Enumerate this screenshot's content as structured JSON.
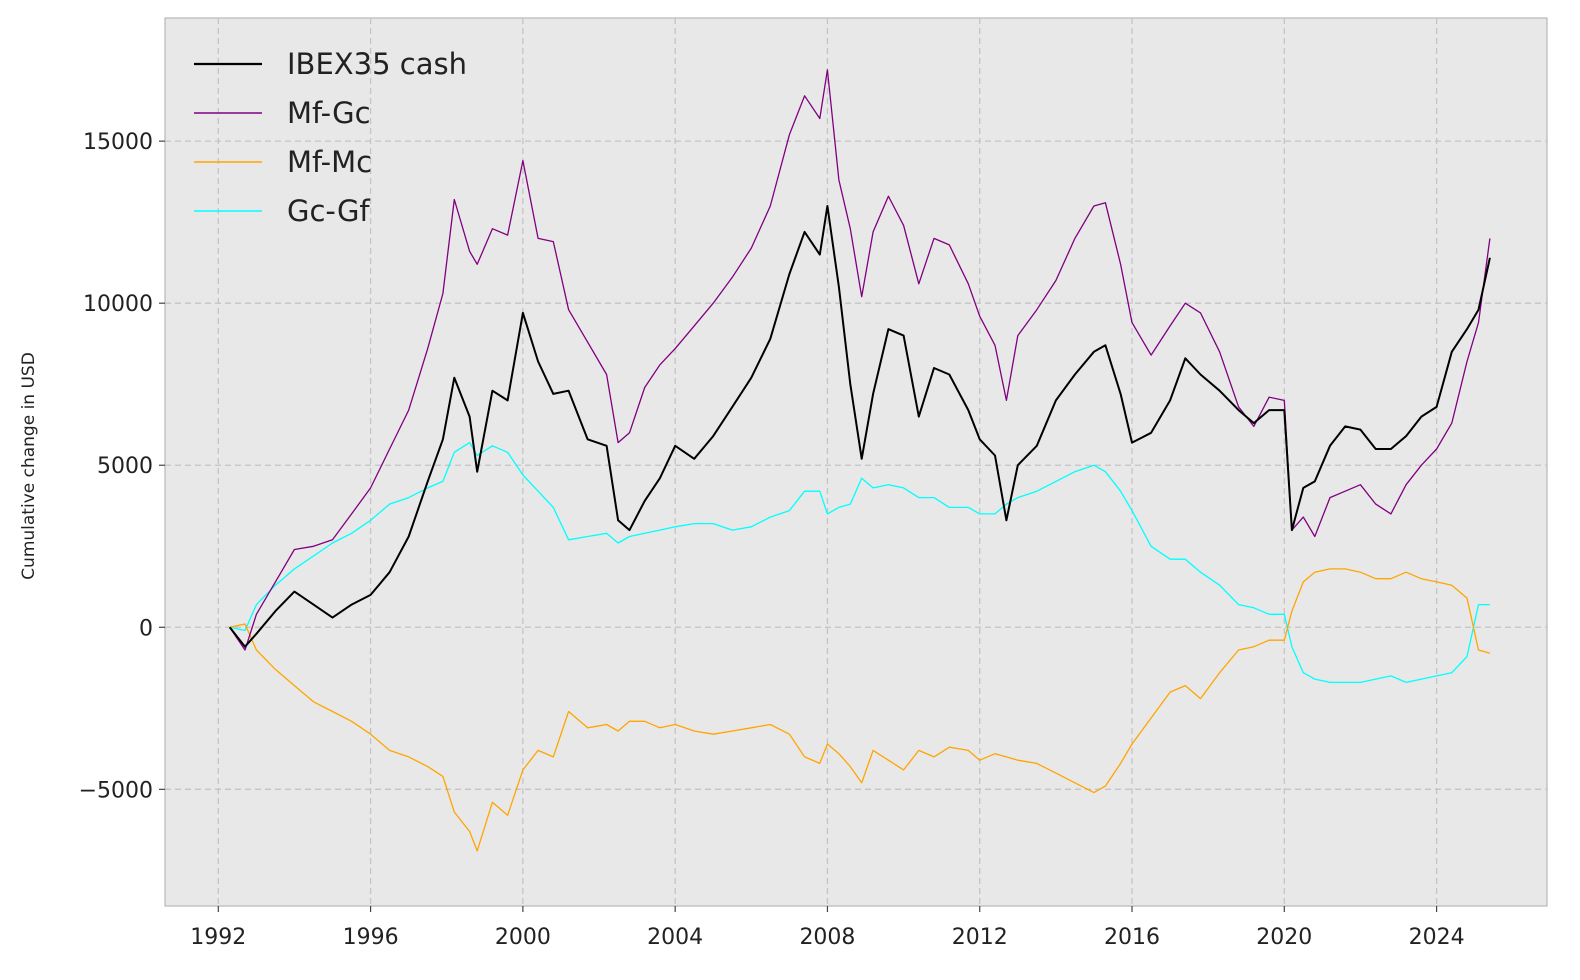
{
  "chart_data": {
    "type": "line",
    "title": "",
    "xlabel": "",
    "ylabel": "Cumulative change in USD",
    "xlim": [
      1990.6,
      2026.9
    ],
    "ylim": [
      -8600,
      18800
    ],
    "grid": true,
    "legend_position": "top-left",
    "x_ticks": [
      1992,
      1996,
      2000,
      2004,
      2008,
      2012,
      2016,
      2020,
      2024
    ],
    "x_tick_labels": [
      "1992",
      "1996",
      "2000",
      "2004",
      "2008",
      "2012",
      "2016",
      "2020",
      "2024"
    ],
    "y_ticks": [
      -5000,
      0,
      5000,
      10000,
      15000
    ],
    "y_tick_labels": [
      "−5000",
      "0",
      "5000",
      "10000",
      "15000"
    ],
    "series": [
      {
        "name": "IBEX35 cash",
        "color": "#000000",
        "x": [
          1992.3,
          1992.7,
          1993.0,
          1993.5,
          1994.0,
          1994.5,
          1995.0,
          1995.5,
          1996.0,
          1996.5,
          1997.0,
          1997.5,
          1997.9,
          1998.2,
          1998.6,
          1998.8,
          1999.2,
          1999.6,
          2000.0,
          2000.4,
          2000.8,
          2001.2,
          2001.7,
          2002.2,
          2002.5,
          2002.8,
          2003.2,
          2003.6,
          2004.0,
          2004.5,
          2005.0,
          2005.5,
          2006.0,
          2006.5,
          2007.0,
          2007.4,
          2007.8,
          2008.0,
          2008.3,
          2008.6,
          2008.9,
          2009.2,
          2009.6,
          2010.0,
          2010.4,
          2010.8,
          2011.2,
          2011.7,
          2012.0,
          2012.4,
          2012.7,
          2013.0,
          2013.5,
          2014.0,
          2014.5,
          2015.0,
          2015.3,
          2015.7,
          2016.0,
          2016.5,
          2017.0,
          2017.4,
          2017.8,
          2018.3,
          2018.8,
          2019.2,
          2019.6,
          2020.0,
          2020.2,
          2020.5,
          2020.8,
          2021.2,
          2021.6,
          2022.0,
          2022.4,
          2022.8,
          2023.2,
          2023.6,
          2024.0,
          2024.4,
          2024.8,
          2025.1,
          2025.4
        ],
        "y": [
          0,
          -600,
          -200,
          500,
          1100,
          700,
          300,
          700,
          1000,
          1700,
          2800,
          4500,
          5800,
          7700,
          6500,
          4800,
          7300,
          7000,
          9700,
          8200,
          7200,
          7300,
          5800,
          5600,
          3300,
          3000,
          3900,
          4600,
          5600,
          5200,
          5900,
          6800,
          7700,
          8900,
          10900,
          12200,
          11500,
          13000,
          10500,
          7500,
          5200,
          7200,
          9200,
          9000,
          6500,
          8000,
          7800,
          6700,
          5800,
          5300,
          3300,
          5000,
          5600,
          7000,
          7800,
          8500,
          8700,
          7200,
          5700,
          6000,
          7000,
          8300,
          7800,
          7300,
          6700,
          6300,
          6700,
          6700,
          3000,
          4300,
          4500,
          5600,
          6200,
          6100,
          5500,
          5500,
          5900,
          6500,
          6800,
          8500,
          9200,
          9800,
          11400
        ]
      },
      {
        "name": "Mf-Gc",
        "color": "#800080",
        "x": [
          1992.3,
          1992.7,
          1993.0,
          1993.5,
          1994.0,
          1994.5,
          1995.0,
          1995.5,
          1996.0,
          1996.5,
          1997.0,
          1997.5,
          1997.9,
          1998.2,
          1998.6,
          1998.8,
          1999.2,
          1999.6,
          2000.0,
          2000.4,
          2000.8,
          2001.2,
          2001.7,
          2002.2,
          2002.5,
          2002.8,
          2003.2,
          2003.6,
          2004.0,
          2004.5,
          2005.0,
          2005.5,
          2006.0,
          2006.5,
          2007.0,
          2007.4,
          2007.8,
          2008.0,
          2008.3,
          2008.6,
          2008.9,
          2009.2,
          2009.6,
          2010.0,
          2010.4,
          2010.8,
          2011.2,
          2011.7,
          2012.0,
          2012.4,
          2012.7,
          2013.0,
          2013.5,
          2014.0,
          2014.5,
          2015.0,
          2015.3,
          2015.7,
          2016.0,
          2016.5,
          2017.0,
          2017.4,
          2017.8,
          2018.3,
          2018.8,
          2019.2,
          2019.6,
          2020.0,
          2020.2,
          2020.5,
          2020.8,
          2021.2,
          2021.6,
          2022.0,
          2022.4,
          2022.8,
          2023.2,
          2023.6,
          2024.0,
          2024.4,
          2024.8,
          2025.1,
          2025.4
        ],
        "y": [
          0,
          -700,
          400,
          1400,
          2400,
          2500,
          2700,
          3500,
          4300,
          5500,
          6700,
          8600,
          10300,
          13200,
          11600,
          11200,
          12300,
          12100,
          14400,
          12000,
          11900,
          9800,
          8800,
          7800,
          5700,
          6000,
          7400,
          8100,
          8600,
          9300,
          10000,
          10800,
          11700,
          13000,
          15200,
          16400,
          15700,
          17200,
          13800,
          12300,
          10200,
          12200,
          13300,
          12400,
          10600,
          12000,
          11800,
          10600,
          9600,
          8700,
          7000,
          9000,
          9800,
          10700,
          12000,
          13000,
          13100,
          11200,
          9400,
          8400,
          9300,
          10000,
          9700,
          8500,
          6800,
          6200,
          7100,
          7000,
          3000,
          3400,
          2800,
          4000,
          4200,
          4400,
          3800,
          3500,
          4400,
          5000,
          5500,
          6300,
          8200,
          9400,
          12000
        ]
      },
      {
        "name": "Mf-Mc",
        "color": "#ffa500",
        "x": [
          1992.3,
          1992.7,
          1993.0,
          1993.5,
          1994.0,
          1994.5,
          1995.0,
          1995.5,
          1996.0,
          1996.5,
          1997.0,
          1997.5,
          1997.9,
          1998.2,
          1998.6,
          1998.8,
          1999.2,
          1999.6,
          2000.0,
          2000.4,
          2000.8,
          2001.2,
          2001.7,
          2002.2,
          2002.5,
          2002.8,
          2003.2,
          2003.6,
          2004.0,
          2004.5,
          2005.0,
          2005.5,
          2006.0,
          2006.5,
          2007.0,
          2007.4,
          2007.8,
          2008.0,
          2008.3,
          2008.6,
          2008.9,
          2009.2,
          2009.6,
          2010.0,
          2010.4,
          2010.8,
          2011.2,
          2011.7,
          2012.0,
          2012.4,
          2012.7,
          2013.0,
          2013.5,
          2014.0,
          2014.5,
          2015.0,
          2015.3,
          2015.7,
          2016.0,
          2016.5,
          2017.0,
          2017.4,
          2017.8,
          2018.3,
          2018.8,
          2019.2,
          2019.6,
          2020.0,
          2020.2,
          2020.5,
          2020.8,
          2021.2,
          2021.6,
          2022.0,
          2022.4,
          2022.8,
          2023.2,
          2023.6,
          2024.0,
          2024.4,
          2024.8,
          2025.1,
          2025.4
        ],
        "y": [
          0,
          100,
          -700,
          -1300,
          -1800,
          -2300,
          -2600,
          -2900,
          -3300,
          -3800,
          -4000,
          -4300,
          -4600,
          -5700,
          -6300,
          -6900,
          -5400,
          -5800,
          -4400,
          -3800,
          -4000,
          -2600,
          -3100,
          -3000,
          -3200,
          -2900,
          -2900,
          -3100,
          -3000,
          -3200,
          -3300,
          -3200,
          -3100,
          -3000,
          -3300,
          -4000,
          -4200,
          -3600,
          -3900,
          -4300,
          -4800,
          -3800,
          -4100,
          -4400,
          -3800,
          -4000,
          -3700,
          -3800,
          -4100,
          -3900,
          -4000,
          -4100,
          -4200,
          -4500,
          -4800,
          -5100,
          -4900,
          -4200,
          -3600,
          -2800,
          -2000,
          -1800,
          -2200,
          -1400,
          -700,
          -600,
          -400,
          -400,
          500,
          1400,
          1700,
          1800,
          1800,
          1700,
          1500,
          1500,
          1700,
          1500,
          1400,
          1300,
          900,
          -700,
          -800
        ]
      },
      {
        "name": "Gc-Gf",
        "color": "#00ffff",
        "x": [
          1992.3,
          1992.7,
          1993.0,
          1993.5,
          1994.0,
          1994.5,
          1995.0,
          1995.5,
          1996.0,
          1996.5,
          1997.0,
          1997.5,
          1997.9,
          1998.2,
          1998.6,
          1998.8,
          1999.2,
          1999.6,
          2000.0,
          2000.4,
          2000.8,
          2001.2,
          2001.7,
          2002.2,
          2002.5,
          2002.8,
          2003.2,
          2003.6,
          2004.0,
          2004.5,
          2005.0,
          2005.5,
          2006.0,
          2006.5,
          2007.0,
          2007.4,
          2007.8,
          2008.0,
          2008.3,
          2008.6,
          2008.9,
          2009.2,
          2009.6,
          2010.0,
          2010.4,
          2010.8,
          2011.2,
          2011.7,
          2012.0,
          2012.4,
          2012.7,
          2013.0,
          2013.5,
          2014.0,
          2014.5,
          2015.0,
          2015.3,
          2015.7,
          2016.0,
          2016.5,
          2017.0,
          2017.4,
          2017.8,
          2018.3,
          2018.8,
          2019.2,
          2019.6,
          2020.0,
          2020.2,
          2020.5,
          2020.8,
          2021.2,
          2021.6,
          2022.0,
          2022.4,
          2022.8,
          2023.2,
          2023.6,
          2024.0,
          2024.4,
          2024.8,
          2025.1,
          2025.4
        ],
        "y": [
          0,
          -100,
          700,
          1300,
          1800,
          2200,
          2600,
          2900,
          3300,
          3800,
          4000,
          4300,
          4500,
          5400,
          5700,
          5300,
          5600,
          5400,
          4700,
          4200,
          3700,
          2700,
          2800,
          2900,
          2600,
          2800,
          2900,
          3000,
          3100,
          3200,
          3200,
          3000,
          3100,
          3400,
          3600,
          4200,
          4200,
          3500,
          3700,
          3800,
          4600,
          4300,
          4400,
          4300,
          4000,
          4000,
          3700,
          3700,
          3500,
          3500,
          3800,
          4000,
          4200,
          4500,
          4800,
          5000,
          4800,
          4200,
          3600,
          2500,
          2100,
          2100,
          1700,
          1300,
          700,
          600,
          400,
          400,
          -600,
          -1400,
          -1600,
          -1700,
          -1700,
          -1700,
          -1600,
          -1500,
          -1700,
          -1600,
          -1500,
          -1400,
          -900,
          700,
          700
        ]
      }
    ]
  }
}
